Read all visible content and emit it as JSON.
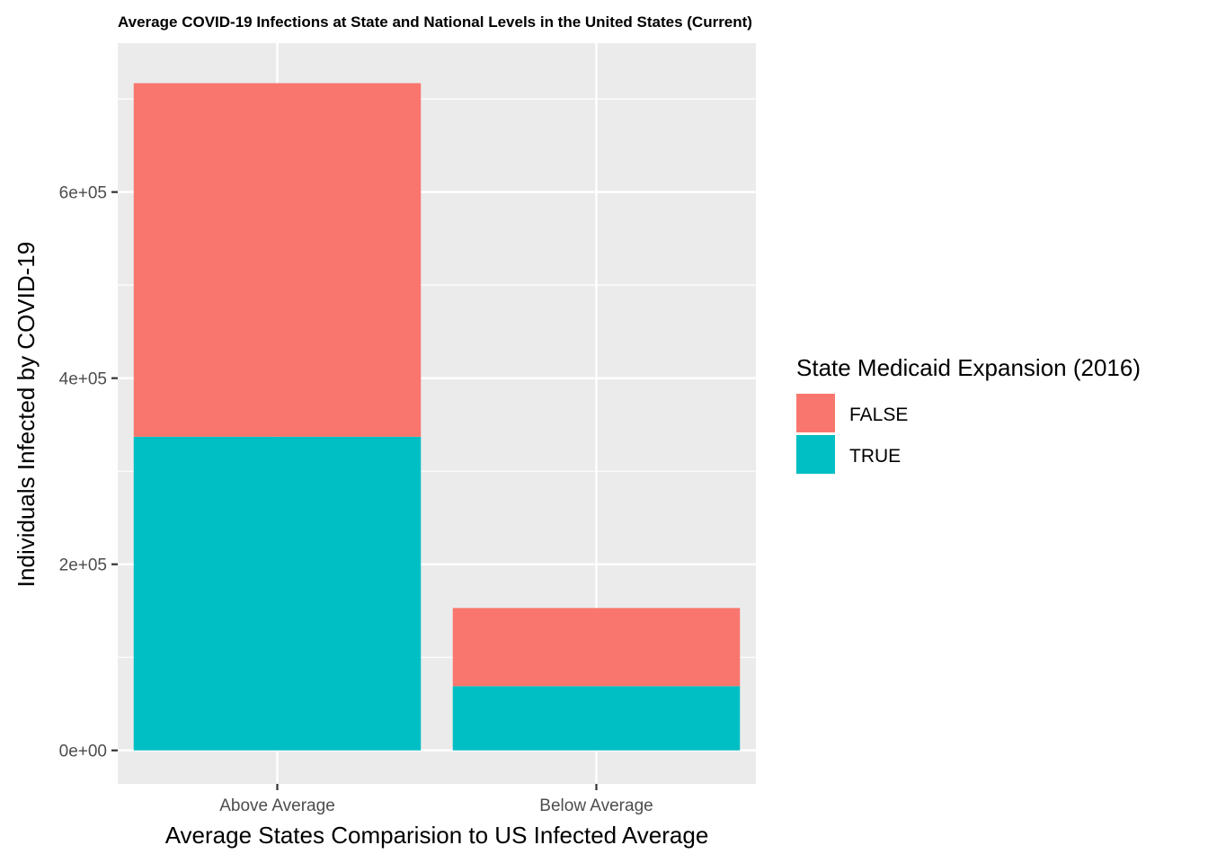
{
  "chart_data": {
    "type": "bar",
    "stacked": true,
    "title": "Average COVID-19 Infections at State and National Levels in the United States (Current)",
    "xlabel": "Average States Comparision to US Infected Average",
    "ylabel": "Individuals Infected by COVID-19",
    "categories": [
      "Above Average",
      "Below Average"
    ],
    "series": [
      {
        "name": "TRUE",
        "color": "#00BFC4",
        "values": [
          337000,
          69000
        ]
      },
      {
        "name": "FALSE",
        "color": "#F8766D",
        "values": [
          380000,
          84000
        ]
      }
    ],
    "ylim": [
      -36000,
      760000
    ],
    "yticks": [
      0,
      200000,
      400000,
      600000
    ],
    "ytick_labels": [
      "0e+00",
      "2e+05",
      "4e+05",
      "6e+05"
    ],
    "grid": true,
    "legend": {
      "title": "State Medicaid Expansion (2016)",
      "placement": "right",
      "entries": [
        {
          "label": "FALSE",
          "color": "#F8766D"
        },
        {
          "label": "TRUE",
          "color": "#00BFC4"
        }
      ]
    },
    "panel_background": "#EBEBEB",
    "grid_color": "#FFFFFF"
  }
}
